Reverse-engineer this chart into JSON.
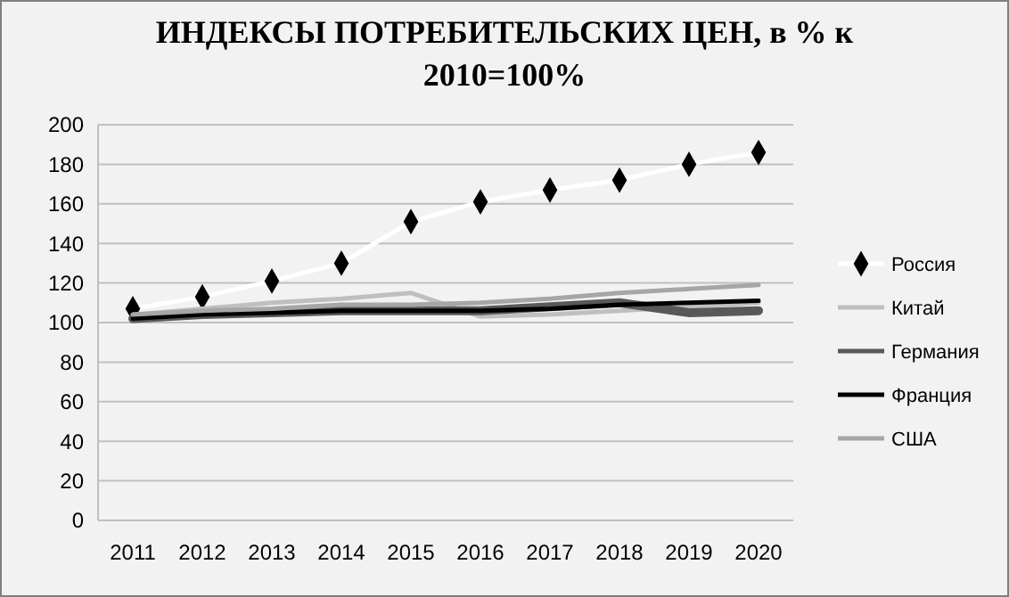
{
  "chart_data": {
    "type": "line",
    "title": "ИНДЕКСЫ ПОТРЕБИТЕЛЬСКИХ ЦЕН, в % к 2010=100%",
    "categories": [
      "2011",
      "2012",
      "2013",
      "2014",
      "2015",
      "2016",
      "2017",
      "2018",
      "2019",
      "2020"
    ],
    "series": [
      {
        "name": "Россия",
        "color": "#ffffff",
        "marker": "diamond",
        "values": [
          107,
          113,
          121,
          130,
          151,
          161,
          167,
          172,
          180,
          186
        ]
      },
      {
        "name": "Китай",
        "color": "#bfbfbf",
        "values": [
          104,
          107,
          110,
          112,
          115,
          103,
          104,
          106,
          108,
          110
        ]
      },
      {
        "name": "Германия",
        "color": "#595959",
        "values": [
          102,
          104,
          105,
          106,
          106,
          106,
          108,
          110,
          105,
          106
        ]
      },
      {
        "name": "Франция",
        "color": "#000000",
        "values": [
          102,
          104,
          105,
          106,
          106,
          106,
          107,
          109,
          110,
          111
        ]
      },
      {
        "name": "США",
        "color": "#a6a6a6",
        "values": [
          104,
          106,
          107,
          109,
          109,
          110,
          112,
          115,
          117,
          119
        ]
      }
    ],
    "ylim": [
      0,
      200
    ],
    "yticks": [
      0,
      20,
      40,
      60,
      80,
      100,
      120,
      140,
      160,
      180,
      200
    ],
    "grid": "y",
    "legend": "right"
  }
}
